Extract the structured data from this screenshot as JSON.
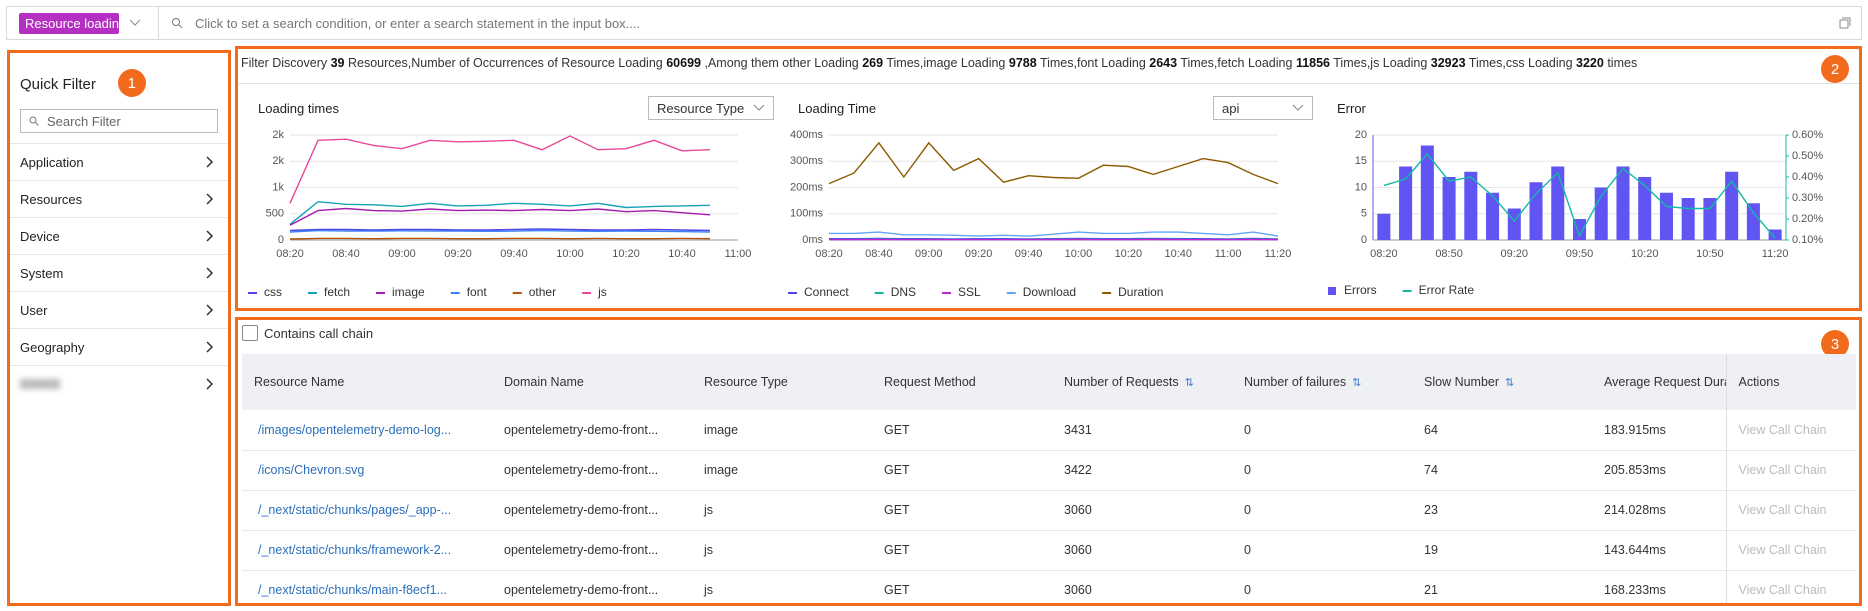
{
  "search": {
    "tag": "Resource loading",
    "placeholder": "Click to set a search condition, or enter a search statement in the input box...."
  },
  "sidebar": {
    "title": "Quick Filter",
    "badge": "1",
    "search_placeholder": "Search Filter",
    "items": [
      "Application",
      "Resources",
      "Device",
      "System",
      "User",
      "Geography"
    ]
  },
  "summary": {
    "badge": "2",
    "segments": [
      "Filter Discovery",
      "39",
      "Resources,Number of Occurrences of Resource Loading",
      "60699",
      ",Among them other Loading",
      "269",
      "Times,image Loading",
      "9788",
      "Times,font Loading",
      "2643",
      "Times,fetch Loading",
      "11856",
      "Times,js Loading",
      "32923",
      "Times,css Loading",
      "3220",
      "times"
    ]
  },
  "chart_data": [
    {
      "type": "line",
      "title": "Loading times",
      "dropdown": "Resource Type",
      "categories": [
        "08:20",
        null,
        "08:40",
        null,
        "09:00",
        null,
        "09:20",
        null,
        "09:40",
        null,
        "10:00",
        null,
        "10:20",
        null,
        "10:40",
        null,
        "11:00"
      ],
      "ylim": [
        0,
        2000
      ],
      "yticks": [
        0,
        500,
        {
          "value": 1000,
          "label": "1k"
        },
        {
          "value": 1500,
          "label": "2k"
        },
        {
          "value": 2000,
          "label": "2k"
        }
      ],
      "grid": true,
      "series": [
        {
          "name": "css",
          "color": "#4f46e5",
          "values": [
            180,
            200,
            200,
            190,
            200,
            200,
            190,
            190,
            200,
            210,
            200,
            190,
            190,
            200,
            190,
            180,
            null
          ]
        },
        {
          "name": "fetch",
          "color": "#14a3b8",
          "values": [
            300,
            730,
            680,
            670,
            640,
            700,
            650,
            660,
            700,
            680,
            650,
            700,
            620,
            640,
            650,
            660,
            null
          ]
        },
        {
          "name": "image",
          "color": "#a21caf",
          "values": [
            280,
            560,
            600,
            560,
            550,
            590,
            560,
            570,
            560,
            580,
            560,
            590,
            540,
            560,
            520,
            480,
            null
          ]
        },
        {
          "name": "font",
          "color": "#3b82f6",
          "values": [
            150,
            180,
            170,
            170,
            175,
            170,
            170,
            165,
            170,
            180,
            170,
            165,
            170,
            165,
            160,
            150,
            null
          ]
        },
        {
          "name": "other",
          "color": "#b45309",
          "values": [
            20,
            30,
            30,
            25,
            30,
            30,
            25,
            25,
            30,
            30,
            25,
            30,
            25,
            25,
            30,
            25,
            null
          ]
        },
        {
          "name": "js",
          "color": "#ec4899",
          "values": [
            700,
            1900,
            1920,
            1800,
            1740,
            1900,
            1870,
            1880,
            1900,
            1720,
            1980,
            1720,
            1740,
            1900,
            1700,
            1720,
            null
          ]
        }
      ]
    },
    {
      "type": "line",
      "title": "Loading Time",
      "dropdown": "api",
      "categories": [
        "08:20",
        null,
        "08:40",
        null,
        "09:00",
        null,
        "09:20",
        null,
        "09:40",
        null,
        "10:00",
        null,
        "10:20",
        null,
        "10:40",
        null,
        "11:00",
        null,
        "11:20"
      ],
      "ylim": [
        0,
        400
      ],
      "yticks": [
        {
          "value": 0,
          "label": "0ms"
        },
        {
          "value": 100,
          "label": "100ms"
        },
        {
          "value": 200,
          "label": "200ms"
        },
        {
          "value": 300,
          "label": "300ms"
        },
        {
          "value": 400,
          "label": "400ms"
        }
      ],
      "grid": true,
      "series": [
        {
          "name": "Connect",
          "color": "#4f46e5",
          "values": [
            5,
            5,
            6,
            5,
            5,
            4,
            5,
            5,
            4,
            5,
            6,
            5,
            5,
            6,
            5,
            5,
            4,
            6,
            4
          ]
        },
        {
          "name": "DNS",
          "color": "#14b8a6",
          "values": [
            2,
            2,
            3,
            2,
            2,
            2,
            2,
            2,
            2,
            2,
            3,
            2,
            2,
            3,
            2,
            2,
            2,
            3,
            2
          ]
        },
        {
          "name": "SSL",
          "color": "#c026d3",
          "values": [
            1,
            1,
            2,
            1,
            1,
            1,
            1,
            1,
            1,
            1,
            2,
            1,
            1,
            2,
            1,
            1,
            1,
            2,
            1
          ]
        },
        {
          "name": "Download",
          "color": "#60a5fa",
          "values": [
            25,
            25,
            30,
            20,
            20,
            18,
            15,
            18,
            15,
            22,
            30,
            25,
            25,
            30,
            30,
            25,
            20,
            30,
            15
          ]
        },
        {
          "name": "Duration",
          "color": "#8b5a00",
          "values": [
            215,
            255,
            370,
            240,
            370,
            265,
            310,
            220,
            245,
            238,
            235,
            285,
            280,
            250,
            280,
            310,
            295,
            250,
            215
          ]
        }
      ]
    },
    {
      "type": "bar",
      "title": "Error",
      "categories": [
        "08:20",
        null,
        null,
        "08:50",
        null,
        null,
        "09:20",
        null,
        null,
        "09:50",
        null,
        null,
        "10:20",
        null,
        null,
        "10:50",
        null,
        null,
        "11:20"
      ],
      "ylim": [
        0,
        20
      ],
      "yticks": [
        0,
        5,
        10,
        15,
        20
      ],
      "grid": true,
      "y2lim": [
        0.1,
        0.6
      ],
      "y2ticks": [
        {
          "value": 0.1,
          "label": "0.10%"
        },
        {
          "value": 0.2,
          "label": "0.20%"
        },
        {
          "value": 0.3,
          "label": "0.30%"
        },
        {
          "value": 0.4,
          "label": "0.40%"
        },
        {
          "value": 0.5,
          "label": "0.50%"
        },
        {
          "value": 0.6,
          "label": "0.60%"
        }
      ],
      "series": [
        {
          "name": "Errors",
          "color": "#6055f2",
          "values": [
            5,
            14,
            18,
            12,
            13,
            9,
            6,
            11,
            14,
            4,
            10,
            14,
            12,
            9,
            8,
            8,
            13,
            7,
            2
          ]
        },
        {
          "name": "Error Rate",
          "type": "line",
          "axis": "y2",
          "color": "#14b8a6",
          "values": [
            0.36,
            0.39,
            0.51,
            0.38,
            0.4,
            0.31,
            0.19,
            0.32,
            0.42,
            0.12,
            0.31,
            0.44,
            0.36,
            0.26,
            0.25,
            0.25,
            0.38,
            0.23,
            0.11
          ]
        }
      ]
    }
  ],
  "table": {
    "badge": "3",
    "checkbox": "Contains call chain",
    "columns": [
      "Resource Name",
      "Domain Name",
      "Resource Type",
      "Request Method",
      "Number of Requests",
      "Number of failures",
      "Slow Number",
      "Average Request Duration",
      "Actions"
    ],
    "rows": [
      [
        "/images/opentelemetry-demo-log...",
        "opentelemetry-demo-front...",
        "image",
        "GET",
        "3431",
        "0",
        "64",
        "183.915ms",
        "View Call Chain"
      ],
      [
        "/icons/Chevron.svg",
        "opentelemetry-demo-front...",
        "image",
        "GET",
        "3422",
        "0",
        "74",
        "205.853ms",
        "View Call Chain"
      ],
      [
        "/_next/static/chunks/pages/_app-...",
        "opentelemetry-demo-front...",
        "js",
        "GET",
        "3060",
        "0",
        "23",
        "214.028ms",
        "View Call Chain"
      ],
      [
        "/_next/static/chunks/framework-2...",
        "opentelemetry-demo-front...",
        "js",
        "GET",
        "3060",
        "0",
        "19",
        "143.644ms",
        "View Call Chain"
      ],
      [
        "/_next/static/chunks/main-f8ecf1...",
        "opentelemetry-demo-front...",
        "js",
        "GET",
        "3060",
        "0",
        "21",
        "168.233ms",
        "View Call Chain"
      ]
    ]
  }
}
